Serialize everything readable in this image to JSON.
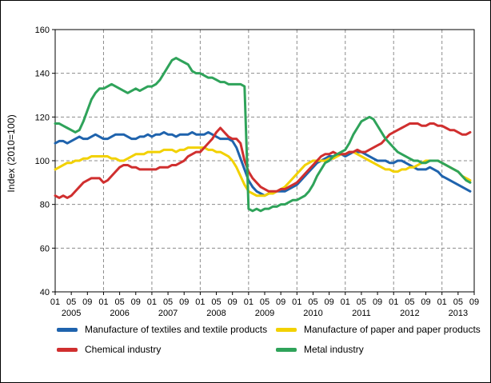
{
  "chart_data": {
    "type": "line",
    "title": "",
    "ylabel": "Index (2010=100)",
    "ylim": [
      40,
      160
    ],
    "y_ticks": [
      40,
      60,
      80,
      100,
      120,
      140,
      160
    ],
    "x_start": "2005-01",
    "x_end": "2013-08",
    "years": [
      "2005",
      "2006",
      "2007",
      "2008",
      "2009",
      "2010",
      "2011",
      "2012",
      "2013"
    ],
    "x_tick_months": [
      "01",
      "05",
      "09"
    ],
    "grid": "dashed",
    "legend_position": "bottom",
    "series": [
      {
        "name": "Manufacture of textiles and textile products",
        "color": "#1f63ad",
        "values": [
          108,
          109,
          109,
          108,
          109,
          110,
          111,
          110,
          110,
          111,
          112,
          111,
          110,
          110,
          111,
          112,
          112,
          112,
          111,
          110,
          110,
          111,
          111,
          112,
          111,
          112,
          112,
          113,
          112,
          112,
          111,
          112,
          112,
          112,
          113,
          112,
          112,
          112,
          113,
          112,
          111,
          110,
          110,
          110,
          109,
          106,
          101,
          96,
          91,
          88,
          86,
          85,
          84,
          85,
          85,
          86,
          86,
          86,
          87,
          88,
          89,
          91,
          93,
          95,
          97,
          99,
          100,
          101,
          102,
          102,
          103,
          103,
          102,
          103,
          104,
          104,
          104,
          103,
          102,
          101,
          100,
          100,
          100,
          99,
          99,
          100,
          100,
          99,
          98,
          97,
          96,
          96,
          96,
          97,
          96,
          95,
          93,
          92,
          91,
          90,
          89,
          88,
          87,
          86
        ]
      },
      {
        "name": "Manufacture of paper and paper products",
        "color": "#f2d100",
        "values": [
          96,
          97,
          98,
          99,
          99,
          100,
          100,
          101,
          101,
          102,
          102,
          102,
          102,
          102,
          101,
          101,
          100,
          100,
          101,
          102,
          103,
          103,
          103,
          104,
          104,
          104,
          104,
          105,
          105,
          105,
          104,
          105,
          105,
          106,
          106,
          106,
          106,
          106,
          105,
          105,
          104,
          104,
          103,
          102,
          100,
          97,
          93,
          89,
          86,
          85,
          84,
          84,
          84,
          85,
          85,
          86,
          87,
          88,
          90,
          92,
          94,
          96,
          98,
          99,
          100,
          100,
          100,
          100,
          101,
          101,
          102,
          103,
          103,
          104,
          104,
          103,
          102,
          101,
          100,
          99,
          98,
          97,
          96,
          96,
          95,
          95,
          96,
          96,
          97,
          97,
          98,
          99,
          100,
          100,
          100,
          100,
          99,
          98,
          97,
          96,
          95,
          93,
          92,
          91
        ]
      },
      {
        "name": "Chemical industry",
        "color": "#d02f2f",
        "values": [
          84,
          83,
          84,
          83,
          84,
          86,
          88,
          90,
          91,
          92,
          92,
          92,
          90,
          91,
          93,
          95,
          97,
          98,
          98,
          97,
          97,
          96,
          96,
          96,
          96,
          96,
          97,
          97,
          97,
          98,
          98,
          99,
          100,
          102,
          103,
          104,
          104,
          106,
          108,
          110,
          113,
          115,
          113,
          111,
          110,
          110,
          108,
          100,
          95,
          92,
          90,
          88,
          87,
          86,
          86,
          86,
          87,
          87,
          88,
          89,
          90,
          92,
          94,
          96,
          98,
          100,
          102,
          103,
          103,
          104,
          103,
          103,
          103,
          104,
          104,
          105,
          104,
          104,
          105,
          106,
          107,
          108,
          110,
          112,
          113,
          114,
          115,
          116,
          117,
          117,
          117,
          116,
          116,
          117,
          117,
          116,
          116,
          115,
          114,
          114,
          113,
          112,
          112,
          113
        ]
      },
      {
        "name": "Metal industry",
        "color": "#2fa35a",
        "values": [
          117,
          117,
          116,
          115,
          114,
          113,
          114,
          118,
          123,
          128,
          131,
          133,
          133,
          134,
          135,
          134,
          133,
          132,
          131,
          132,
          133,
          132,
          133,
          134,
          134,
          135,
          137,
          140,
          143,
          146,
          147,
          146,
          145,
          144,
          141,
          140,
          140,
          139,
          138,
          138,
          137,
          136,
          136,
          135,
          135,
          135,
          135,
          134,
          78,
          77,
          78,
          77,
          78,
          78,
          79,
          79,
          80,
          80,
          81,
          82,
          82,
          83,
          84,
          86,
          89,
          93,
          96,
          99,
          100,
          102,
          103,
          104,
          105,
          108,
          112,
          115,
          118,
          119,
          120,
          119,
          116,
          113,
          110,
          108,
          106,
          104,
          103,
          102,
          101,
          100,
          100,
          99,
          99,
          100,
          100,
          100,
          99,
          98,
          97,
          96,
          95,
          93,
          91,
          90
        ]
      }
    ]
  }
}
